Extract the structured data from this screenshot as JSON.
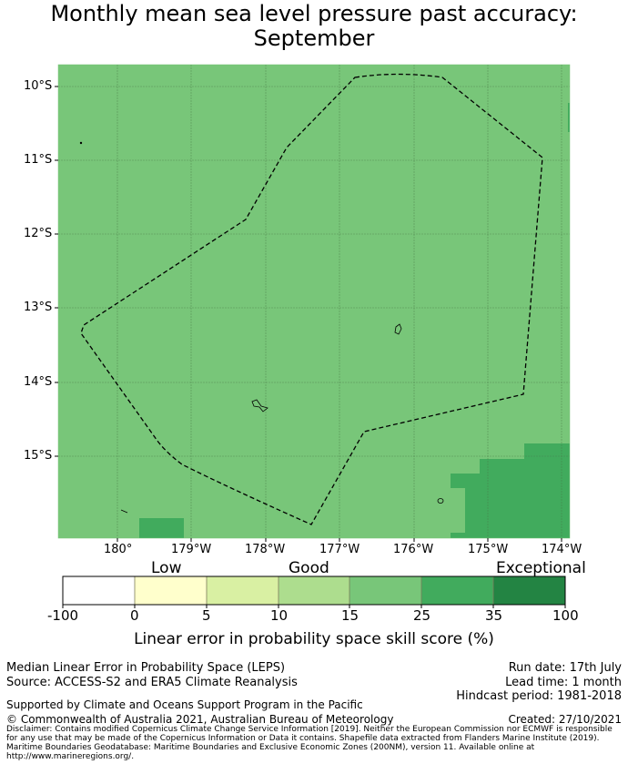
{
  "title": {
    "line1": "Monthly mean sea level pressure past accuracy:",
    "line2": "September"
  },
  "map": {
    "latitude_labels": [
      "10°S",
      "11°S",
      "12°S",
      "13°S",
      "14°S",
      "15°S"
    ],
    "longitude_labels": [
      "180°",
      "179°W",
      "178°W",
      "177°W",
      "176°W",
      "175°W",
      "174°W"
    ],
    "colors": {
      "background_fill": "#78c679",
      "higher_fill": "#41ab5d",
      "boundary_line": "#000000",
      "grid_line": "#4a7a4a"
    }
  },
  "colorbar": {
    "category_labels": [
      "Low",
      "Good",
      "Exceptional"
    ],
    "ticks": [
      "-100",
      "0",
      "5",
      "10",
      "15",
      "25",
      "35",
      "100"
    ],
    "colors": [
      "#ffffff",
      "#ffffcc",
      "#d9f0a3",
      "#addd8e",
      "#78c679",
      "#41ab5d",
      "#238443"
    ],
    "title": "Linear error in probability space skill score (%)"
  },
  "info": {
    "left_line1": "Median Linear Error in Probability Space (LEPS)",
    "left_line2": "Source: ACCESS-S2 and ERA5 Climate Reanalysis",
    "right_line1": "Run date: 17th July",
    "right_line2": "Lead time: 1 month",
    "right_line3": "Hindcast period: 1981-2018",
    "supported": "Supported by Climate and Oceans Support Program in the Pacific",
    "copyright": "© Commonwealth of Australia 2021, Australian Bureau of Meteorology",
    "created": "Created: 27/10/2021",
    "disclaimer": "Disclaimer: Contains modified Copernicus Climate Change Service Information [2019]. Neither the European Commission nor ECMWF is responsible for any use that may be made of the Copernicus Information or Data it contains. Shapefile data extracted from Flanders Marine Institute (2019). Maritime Boundaries Geodatabase: Maritime Boundaries and Exclusive Economic Zones (200NM), version 11. Available online at http://www.marineregions.org/."
  }
}
